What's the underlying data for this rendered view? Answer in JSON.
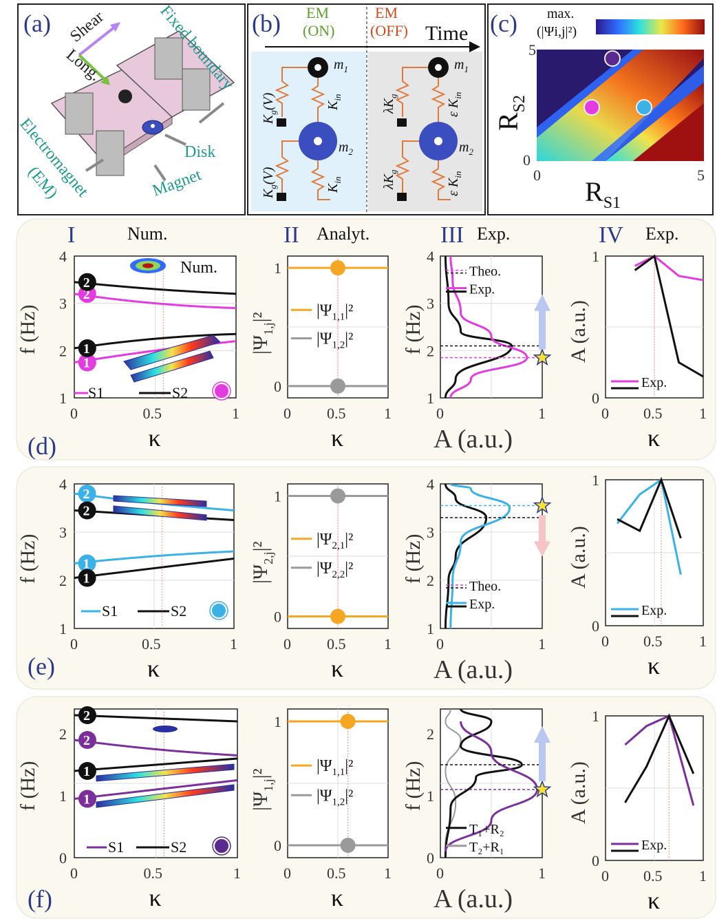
{
  "top": {
    "a": {
      "label": "(a)",
      "shear": "Shear",
      "long": "Long.",
      "fixed_boundary": "Fixed boundary",
      "disk": "Disk",
      "electromagnet": "Electromagnet",
      "em": "(EM)",
      "magnet": "Magnet"
    },
    "b": {
      "label": "(b)",
      "em_on_1": "EM",
      "em_on_2": "(ON)",
      "em_off_1": "EM",
      "em_off_2": "(OFF)",
      "time": "Time",
      "m1": "m",
      "m1_sub": "1",
      "m2": "m",
      "m2_sub": "2",
      "kg": "K",
      "kg_sub": "g",
      "kgv": "(V)",
      "kin": "K",
      "kin_sub": "in",
      "lam_kg": "λK",
      "eps_kin": "ε K"
    },
    "c": {
      "label": "(c)",
      "cbar_1": "max.",
      "cbar_2": "(|Ψi,j|²)",
      "xlabel": "R",
      "xlabel_sub": "S1",
      "ylabel": "R",
      "ylabel_sub": "S2",
      "x0": "0",
      "x5": "5",
      "y0": "0",
      "y5": "5"
    }
  },
  "headers": {
    "I": "I",
    "I_t": "Num.",
    "II": "II",
    "II_t": "Analyt.",
    "III": "III",
    "III_t": "Exp.",
    "IV": "IV",
    "IV_t": "Exp."
  },
  "rows": {
    "d": {
      "label": "(d)"
    },
    "e": {
      "label": "(e)"
    },
    "f": {
      "label": "(f)"
    }
  },
  "axes": {
    "kappa": "κ",
    "f_hz": "f (Hz)",
    "a_au": "A (a.u.)",
    "psi1": "|Ψ",
    "psi1_sub": "1,j",
    "psi2_sub": "2,j",
    "sq": "|²",
    "t0": "0",
    "t05": "0.5",
    "t1": "1",
    "f1": "1",
    "f2": "2",
    "f3": "3",
    "f4": "4",
    "f0": "0"
  },
  "legends": {
    "s1": "S1",
    "s2": "S2",
    "num": "Num.",
    "theo": "Theo.",
    "exp": "Exp.",
    "psi11": "|Ψ",
    "psi11_sub": "1,1",
    "psi12_sub": "1,2",
    "psi21_sub": "2,1",
    "psi22_sub": "2,2",
    "sq": "|²",
    "t1r2": "T₁+R₂",
    "t2r1": "T₂+R₁",
    "mode1": "1",
    "mode2": "2"
  },
  "colors": {
    "magenta": "#e23ce0",
    "cyan": "#3ab2e8",
    "purple": "#7b2f9b",
    "orange": "#f5a623",
    "gray": "#9a9a9a",
    "navy": "#2c3a8c",
    "panel_bg": "#fbf9ef"
  },
  "chart_data": [
    {
      "type": "line",
      "panel": "d-I",
      "xlabel": "κ",
      "ylabel": "f (Hz)",
      "xlim": [
        0,
        1
      ],
      "ylim": [
        1,
        4
      ],
      "series": [
        {
          "name": "S1",
          "x": [
            0,
            0.5,
            1
          ],
          "values": [
            1.75,
            2.0,
            2.2
          ]
        },
        {
          "name": "S1",
          "x": [
            0,
            0.5,
            1
          ],
          "values": [
            3.2,
            3.0,
            2.9
          ]
        },
        {
          "name": "S2",
          "x": [
            0,
            0.5,
            1
          ],
          "values": [
            2.05,
            2.25,
            2.35
          ]
        },
        {
          "name": "S2",
          "x": [
            0,
            0.5,
            1
          ],
          "values": [
            3.45,
            3.3,
            3.2
          ]
        }
      ]
    },
    {
      "type": "line",
      "panel": "e-I",
      "xlabel": "κ",
      "ylabel": "f (Hz)",
      "xlim": [
        0,
        1
      ],
      "ylim": [
        1,
        4
      ],
      "series": [
        {
          "name": "S1",
          "x": [
            0,
            0.5,
            1
          ],
          "values": [
            2.35,
            2.5,
            2.6
          ]
        },
        {
          "name": "S1",
          "x": [
            0,
            0.5,
            1
          ],
          "values": [
            3.8,
            3.6,
            3.45
          ]
        },
        {
          "name": "S2",
          "x": [
            0,
            0.5,
            1
          ],
          "values": [
            2.05,
            2.25,
            2.45
          ]
        },
        {
          "name": "S2",
          "x": [
            0,
            0.5,
            1
          ],
          "values": [
            3.45,
            3.35,
            3.25
          ]
        }
      ]
    },
    {
      "type": "line",
      "panel": "f-I",
      "xlabel": "κ",
      "ylabel": "f (Hz)",
      "xlim": [
        0,
        1
      ],
      "ylim": [
        0,
        2.4
      ],
      "series": [
        {
          "name": "S1",
          "x": [
            0,
            0.5,
            1
          ],
          "values": [
            0.95,
            1.1,
            1.25
          ]
        },
        {
          "name": "S1",
          "x": [
            0,
            0.5,
            1
          ],
          "values": [
            1.9,
            1.75,
            1.65
          ]
        },
        {
          "name": "S2",
          "x": [
            0,
            0.5,
            1
          ],
          "values": [
            1.4,
            1.5,
            1.6
          ]
        },
        {
          "name": "S2",
          "x": [
            0,
            0.5,
            1
          ],
          "values": [
            2.3,
            2.25,
            2.2
          ]
        }
      ]
    },
    {
      "type": "line",
      "panel": "d-IV",
      "xlabel": "κ",
      "ylabel": "A (a.u.)",
      "xlim": [
        0,
        1
      ],
      "ylim": [
        0,
        1
      ],
      "series": [
        {
          "name": "Exp.",
          "x": [
            0.3,
            0.5,
            0.75,
            1.0
          ],
          "values": [
            0.93,
            1.0,
            0.86,
            0.83
          ]
        },
        {
          "name": "",
          "x": [
            0.3,
            0.5,
            0.75,
            1.0
          ],
          "values": [
            0.9,
            1.0,
            0.25,
            0.15
          ]
        }
      ]
    },
    {
      "type": "line",
      "panel": "e-IV",
      "xlabel": "κ",
      "ylabel": "A (a.u.)",
      "xlim": [
        0,
        1
      ],
      "ylim": [
        0,
        1
      ],
      "series": [
        {
          "name": "Exp.",
          "x": [
            0.12,
            0.35,
            0.57,
            0.77
          ],
          "values": [
            0.7,
            0.9,
            1.0,
            0.35
          ]
        },
        {
          "name": "",
          "x": [
            0.12,
            0.35,
            0.57,
            0.77
          ],
          "values": [
            0.73,
            0.65,
            1.0,
            0.6
          ]
        }
      ]
    },
    {
      "type": "line",
      "panel": "f-IV",
      "xlabel": "κ",
      "ylabel": "A (a.u.)",
      "xlim": [
        0,
        1
      ],
      "ylim": [
        0,
        1
      ],
      "series": [
        {
          "name": "Exp.",
          "x": [
            0.2,
            0.42,
            0.65,
            0.9
          ],
          "values": [
            0.8,
            0.93,
            1.0,
            0.38
          ]
        },
        {
          "name": "",
          "x": [
            0.2,
            0.42,
            0.65,
            0.9
          ],
          "values": [
            0.4,
            0.65,
            1.0,
            0.6
          ]
        }
      ]
    }
  ]
}
